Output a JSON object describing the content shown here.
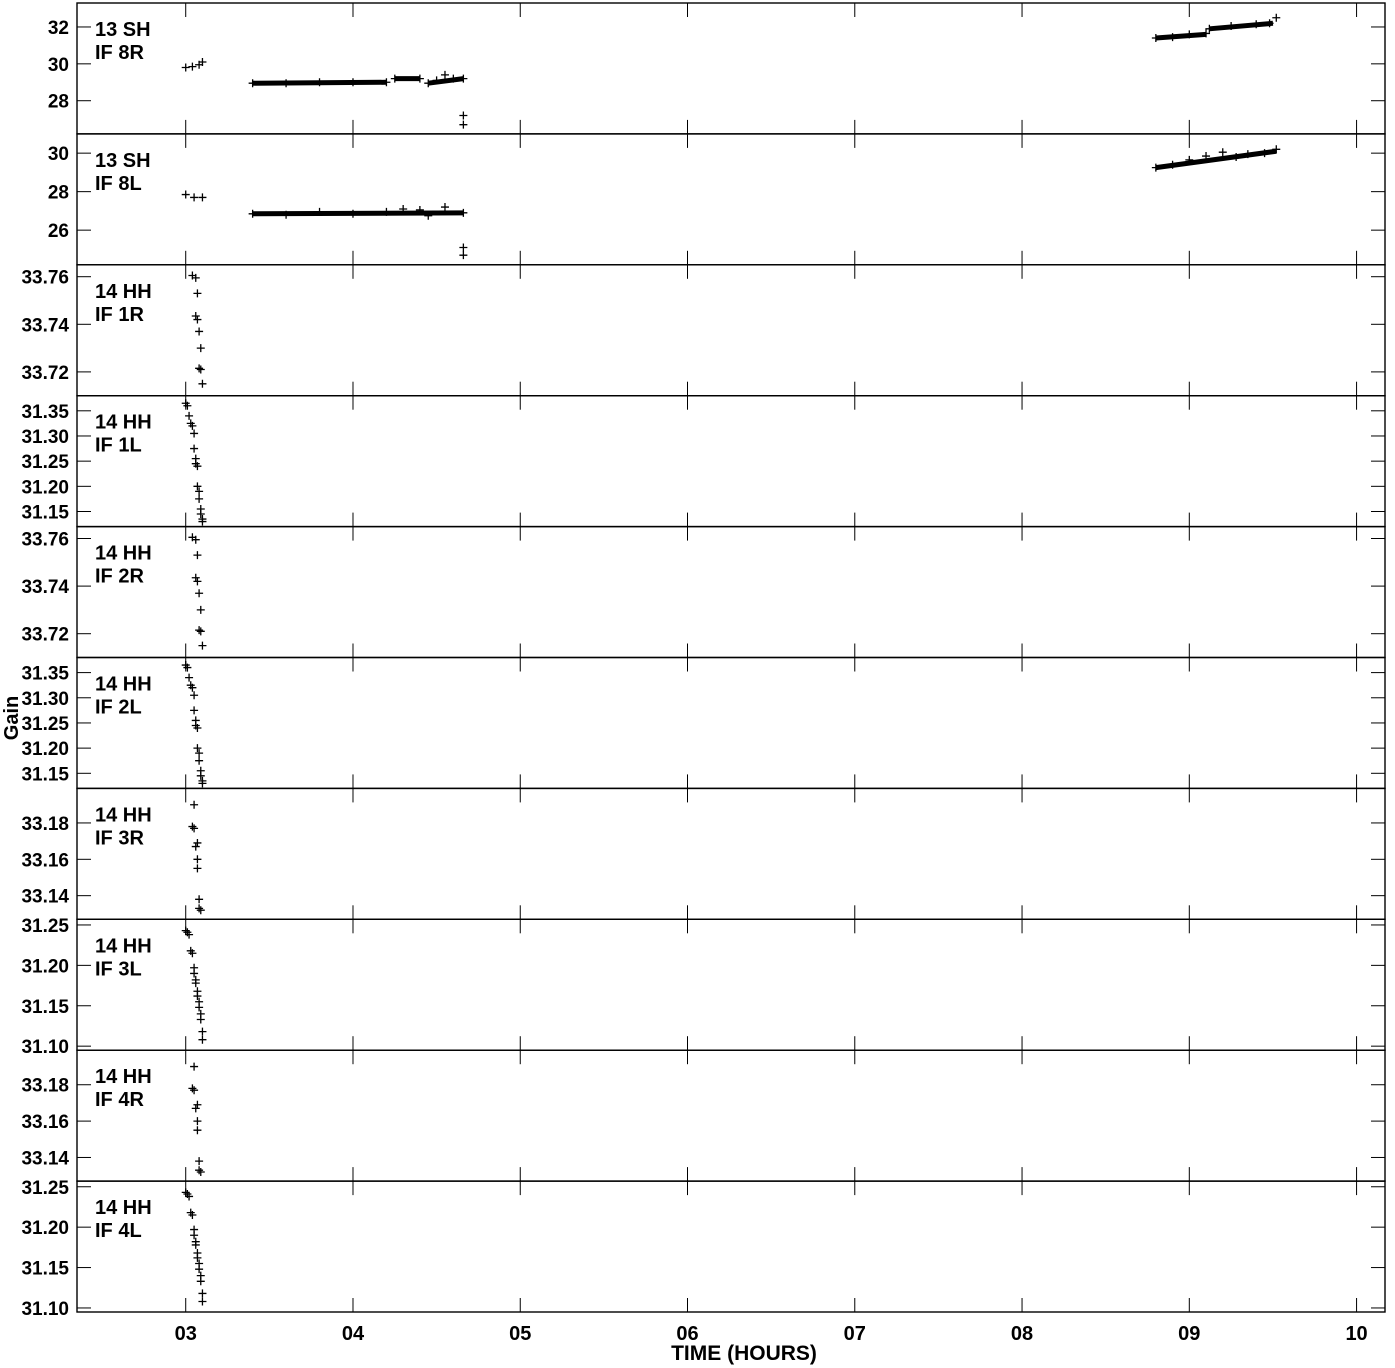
{
  "chart_data": {
    "type": "scatter",
    "xlabel": "TIME (HOURS)",
    "ylabel": "Gain",
    "xlim": [
      2.35,
      10.17
    ],
    "x_ticks": [
      3,
      4,
      5,
      6,
      7,
      8,
      9,
      10
    ],
    "x_tick_labels": [
      "03",
      "04",
      "05",
      "06",
      "07",
      "08",
      "09",
      "10"
    ],
    "grid": false,
    "panels": [
      {
        "label1": "13 SH",
        "label2": "IF 8R",
        "ylim": [
          26.2,
          33.3
        ],
        "y_ticks": [
          28,
          30,
          32
        ],
        "y_tick_labels": [
          "28",
          "30",
          "32"
        ],
        "points": [
          [
            3.0,
            29.8
          ],
          [
            3.04,
            29.85
          ],
          [
            3.08,
            29.95
          ],
          [
            3.1,
            30.1
          ],
          [
            3.4,
            28.95
          ],
          [
            3.6,
            28.95
          ],
          [
            3.8,
            29.0
          ],
          [
            4.0,
            29.0
          ],
          [
            4.2,
            29.0
          ],
          [
            4.25,
            29.2
          ],
          [
            4.4,
            29.2
          ],
          [
            4.45,
            28.95
          ],
          [
            4.5,
            29.1
          ],
          [
            4.55,
            29.4
          ],
          [
            4.6,
            29.2
          ],
          [
            4.66,
            29.2
          ],
          [
            4.66,
            27.2
          ],
          [
            4.66,
            26.7
          ],
          [
            8.8,
            31.4
          ],
          [
            8.9,
            31.45
          ],
          [
            9.0,
            31.6
          ],
          [
            9.1,
            31.65
          ],
          [
            9.12,
            31.9
          ],
          [
            9.25,
            32.05
          ],
          [
            9.4,
            32.15
          ],
          [
            9.48,
            32.2
          ],
          [
            9.52,
            32.5
          ]
        ],
        "segments": [
          [
            3.4,
            28.95,
            4.2,
            29.0
          ],
          [
            4.25,
            29.2,
            4.4,
            29.2
          ],
          [
            4.45,
            28.95,
            4.66,
            29.2
          ],
          [
            8.8,
            31.4,
            9.1,
            31.6
          ],
          [
            9.12,
            31.9,
            9.5,
            32.2
          ]
        ]
      },
      {
        "label1": "13 SH",
        "label2": "IF 8L",
        "ylim": [
          24.2,
          31.0
        ],
        "y_ticks": [
          26,
          28,
          30
        ],
        "y_tick_labels": [
          "26",
          "28",
          "30"
        ],
        "points": [
          [
            3.0,
            27.85
          ],
          [
            3.05,
            27.7
          ],
          [
            3.1,
            27.7
          ],
          [
            3.4,
            26.85
          ],
          [
            3.6,
            26.8
          ],
          [
            3.8,
            26.95
          ],
          [
            4.0,
            26.85
          ],
          [
            4.2,
            26.95
          ],
          [
            4.3,
            27.1
          ],
          [
            4.4,
            27.05
          ],
          [
            4.45,
            26.75
          ],
          [
            4.55,
            27.2
          ],
          [
            4.66,
            26.9
          ],
          [
            4.66,
            25.1
          ],
          [
            4.66,
            24.7
          ],
          [
            8.8,
            29.25
          ],
          [
            8.9,
            29.4
          ],
          [
            9.0,
            29.65
          ],
          [
            9.1,
            29.85
          ],
          [
            9.2,
            30.05
          ],
          [
            9.28,
            29.8
          ],
          [
            9.35,
            29.95
          ],
          [
            9.45,
            30.0
          ],
          [
            9.52,
            30.2
          ]
        ],
        "segments": [
          [
            3.4,
            26.85,
            4.66,
            26.9
          ],
          [
            8.8,
            29.25,
            9.52,
            30.1
          ]
        ]
      },
      {
        "label1": "14 HH",
        "label2": "IF 1R",
        "ylim": [
          33.71,
          33.765
        ],
        "y_ticks": [
          33.72,
          33.74,
          33.76
        ],
        "y_tick_labels": [
          "33.72",
          "33.74",
          "33.76"
        ],
        "points": [
          [
            3.04,
            33.7605
          ],
          [
            3.06,
            33.7595
          ],
          [
            3.07,
            33.753
          ],
          [
            3.06,
            33.7435
          ],
          [
            3.07,
            33.742
          ],
          [
            3.08,
            33.737
          ],
          [
            3.09,
            33.73
          ],
          [
            3.08,
            33.7215
          ],
          [
            3.09,
            33.721
          ],
          [
            3.1,
            33.715
          ]
        ],
        "segments": []
      },
      {
        "label1": "14 HH",
        "label2": "IF 1L",
        "ylim": [
          31.12,
          31.38
        ],
        "y_ticks": [
          31.15,
          31.2,
          31.25,
          31.3,
          31.35
        ],
        "y_tick_labels": [
          "31.15",
          "31.20",
          "31.25",
          "31.30",
          "31.35"
        ],
        "points": [
          [
            3.0,
            31.365
          ],
          [
            3.01,
            31.36
          ],
          [
            3.02,
            31.34
          ],
          [
            3.03,
            31.325
          ],
          [
            3.04,
            31.32
          ],
          [
            3.05,
            31.305
          ],
          [
            3.05,
            31.275
          ],
          [
            3.06,
            31.255
          ],
          [
            3.06,
            31.245
          ],
          [
            3.07,
            31.24
          ],
          [
            3.07,
            31.2
          ],
          [
            3.08,
            31.19
          ],
          [
            3.08,
            31.175
          ],
          [
            3.09,
            31.155
          ],
          [
            3.09,
            31.145
          ],
          [
            3.1,
            31.135
          ],
          [
            3.1,
            31.13
          ]
        ],
        "segments": []
      },
      {
        "label1": "14 HH",
        "label2": "IF 2R",
        "ylim": [
          33.71,
          33.765
        ],
        "y_ticks": [
          33.72,
          33.74,
          33.76
        ],
        "y_tick_labels": [
          "33.72",
          "33.74",
          "33.76"
        ],
        "points": [
          [
            3.04,
            33.7605
          ],
          [
            3.06,
            33.7595
          ],
          [
            3.07,
            33.753
          ],
          [
            3.06,
            33.7435
          ],
          [
            3.07,
            33.742
          ],
          [
            3.08,
            33.737
          ],
          [
            3.09,
            33.73
          ],
          [
            3.08,
            33.7215
          ],
          [
            3.09,
            33.721
          ],
          [
            3.1,
            33.715
          ]
        ],
        "segments": []
      },
      {
        "label1": "14 HH",
        "label2": "IF 2L",
        "ylim": [
          31.12,
          31.38
        ],
        "y_ticks": [
          31.15,
          31.2,
          31.25,
          31.3,
          31.35
        ],
        "y_tick_labels": [
          "31.15",
          "31.20",
          "31.25",
          "31.30",
          "31.35"
        ],
        "points": [
          [
            3.0,
            31.365
          ],
          [
            3.01,
            31.36
          ],
          [
            3.02,
            31.34
          ],
          [
            3.03,
            31.325
          ],
          [
            3.04,
            31.32
          ],
          [
            3.05,
            31.305
          ],
          [
            3.05,
            31.275
          ],
          [
            3.06,
            31.255
          ],
          [
            3.06,
            31.245
          ],
          [
            3.07,
            31.24
          ],
          [
            3.07,
            31.2
          ],
          [
            3.08,
            31.19
          ],
          [
            3.08,
            31.175
          ],
          [
            3.09,
            31.155
          ],
          [
            3.09,
            31.145
          ],
          [
            3.1,
            31.135
          ],
          [
            3.1,
            31.13
          ]
        ],
        "segments": []
      },
      {
        "label1": "14 HH",
        "label2": "IF 3R",
        "ylim": [
          33.127,
          33.199
        ],
        "y_ticks": [
          33.14,
          33.16,
          33.18
        ],
        "y_tick_labels": [
          "33.14",
          "33.16",
          "33.18"
        ],
        "points": [
          [
            3.05,
            33.19
          ],
          [
            3.04,
            33.178
          ],
          [
            3.05,
            33.177
          ],
          [
            3.07,
            33.169
          ],
          [
            3.06,
            33.167
          ],
          [
            3.07,
            33.16
          ],
          [
            3.07,
            33.155
          ],
          [
            3.08,
            33.138
          ],
          [
            3.08,
            33.133
          ],
          [
            3.09,
            33.132
          ]
        ],
        "segments": []
      },
      {
        "label1": "14 HH",
        "label2": "IF 3L",
        "ylim": [
          31.095,
          31.257
        ],
        "y_ticks": [
          31.1,
          31.15,
          31.2,
          31.25
        ],
        "y_tick_labels": [
          "31.10",
          "31.15",
          "31.20",
          "31.25"
        ],
        "points": [
          [
            3.0,
            31.243
          ],
          [
            3.01,
            31.241
          ],
          [
            3.02,
            31.238
          ],
          [
            3.03,
            31.218
          ],
          [
            3.04,
            31.215
          ],
          [
            3.05,
            31.197
          ],
          [
            3.05,
            31.19
          ],
          [
            3.06,
            31.182
          ],
          [
            3.06,
            31.178
          ],
          [
            3.07,
            31.168
          ],
          [
            3.07,
            31.162
          ],
          [
            3.08,
            31.155
          ],
          [
            3.08,
            31.148
          ],
          [
            3.09,
            31.14
          ],
          [
            3.09,
            31.133
          ],
          [
            3.1,
            31.118
          ],
          [
            3.1,
            31.108
          ]
        ],
        "segments": []
      },
      {
        "label1": "14 HH",
        "label2": "IF 4R",
        "ylim": [
          33.127,
          33.199
        ],
        "y_ticks": [
          33.14,
          33.16,
          33.18
        ],
        "y_tick_labels": [
          "33.14",
          "33.16",
          "33.18"
        ],
        "points": [
          [
            3.05,
            33.19
          ],
          [
            3.04,
            33.178
          ],
          [
            3.05,
            33.177
          ],
          [
            3.07,
            33.169
          ],
          [
            3.06,
            33.167
          ],
          [
            3.07,
            33.16
          ],
          [
            3.07,
            33.155
          ],
          [
            3.08,
            33.138
          ],
          [
            3.08,
            33.133
          ],
          [
            3.09,
            33.132
          ]
        ],
        "segments": []
      },
      {
        "label1": "14 HH",
        "label2": "IF 4L",
        "ylim": [
          31.095,
          31.257
        ],
        "y_ticks": [
          31.1,
          31.15,
          31.2,
          31.25
        ],
        "y_tick_labels": [
          "31.10",
          "31.15",
          "31.20",
          "31.25"
        ],
        "points": [
          [
            3.0,
            31.243
          ],
          [
            3.01,
            31.241
          ],
          [
            3.02,
            31.238
          ],
          [
            3.03,
            31.218
          ],
          [
            3.04,
            31.215
          ],
          [
            3.05,
            31.197
          ],
          [
            3.05,
            31.19
          ],
          [
            3.06,
            31.182
          ],
          [
            3.06,
            31.178
          ],
          [
            3.07,
            31.168
          ],
          [
            3.07,
            31.162
          ],
          [
            3.08,
            31.155
          ],
          [
            3.08,
            31.148
          ],
          [
            3.09,
            31.14
          ],
          [
            3.09,
            31.133
          ],
          [
            3.1,
            31.118
          ],
          [
            3.1,
            31.108
          ]
        ],
        "segments": []
      }
    ]
  }
}
